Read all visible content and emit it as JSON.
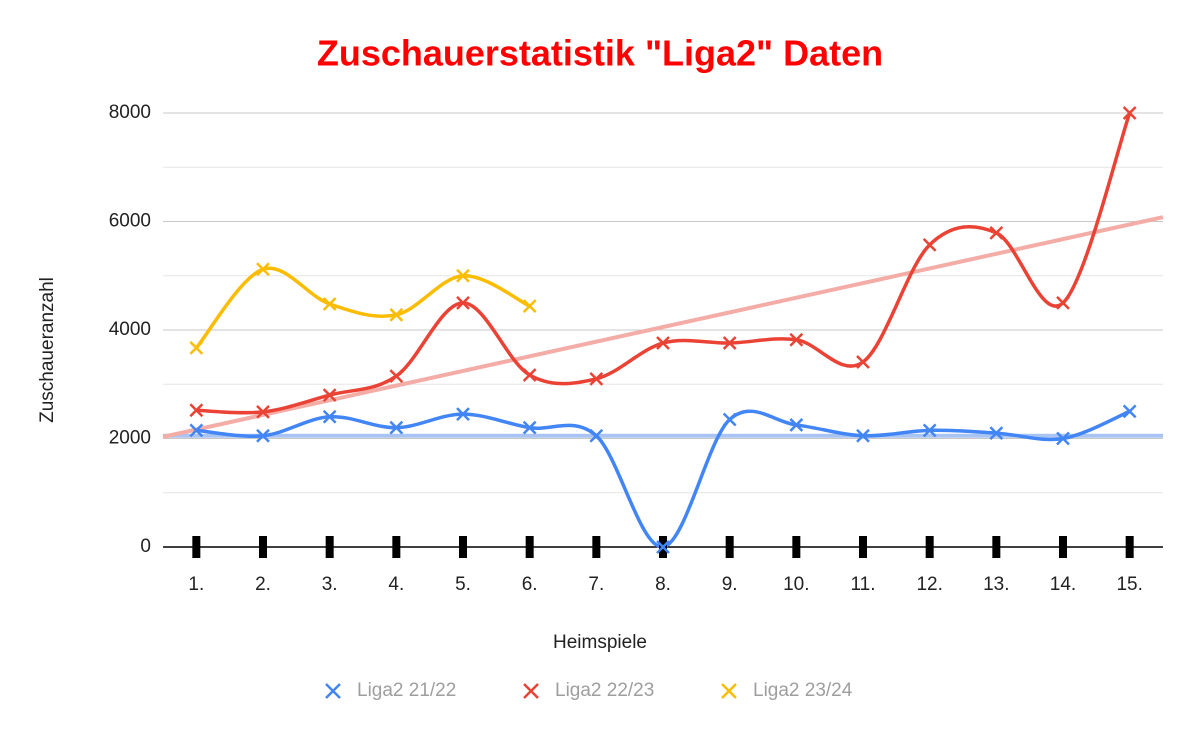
{
  "chart_data": {
    "type": "line",
    "title": "Zuschauerstatistik \"Liga2\" Daten",
    "x_label": "Heimspiele",
    "y_label": "Zuschaueranzahl",
    "categories": [
      "1.",
      "2.",
      "3.",
      "4.",
      "5.",
      "6.",
      "7.",
      "8.",
      "9.",
      "10.",
      "11.",
      "12.",
      "13.",
      "14.",
      "15."
    ],
    "series": [
      {
        "name": "Liga2 21/22",
        "color": "#4285f4",
        "values": [
          2150,
          2050,
          2400,
          2200,
          2450,
          2200,
          2050,
          0,
          2350,
          2250,
          2050,
          2150,
          2100,
          2000,
          2500
        ],
        "trendline": {
          "color": "#a9c4f3",
          "start": 2050,
          "end": 2050
        }
      },
      {
        "name": "Liga2 22/23",
        "color": "#ea4335",
        "values": [
          2520,
          2490,
          2800,
          3150,
          4500,
          3170,
          3100,
          3760,
          3760,
          3820,
          3410,
          5570,
          5790,
          4500,
          8000
        ],
        "trendline": {
          "color": "#f4aca6",
          "start": 2030,
          "end": 6080
        }
      },
      {
        "name": "Liga2 23/24",
        "color": "#fbbc04",
        "values": [
          3670,
          5120,
          4480,
          4280,
          5000,
          4440,
          null,
          null,
          null,
          null,
          null,
          null,
          null,
          null,
          null
        ]
      }
    ],
    "ylim": [
      0,
      8000
    ],
    "yticks": [
      0,
      2000,
      4000,
      6000,
      8000
    ],
    "minor_yticks": [
      1000,
      3000,
      5000,
      7000
    ],
    "grid": true,
    "smooth": true,
    "marker": "x",
    "legend": "bottom"
  }
}
